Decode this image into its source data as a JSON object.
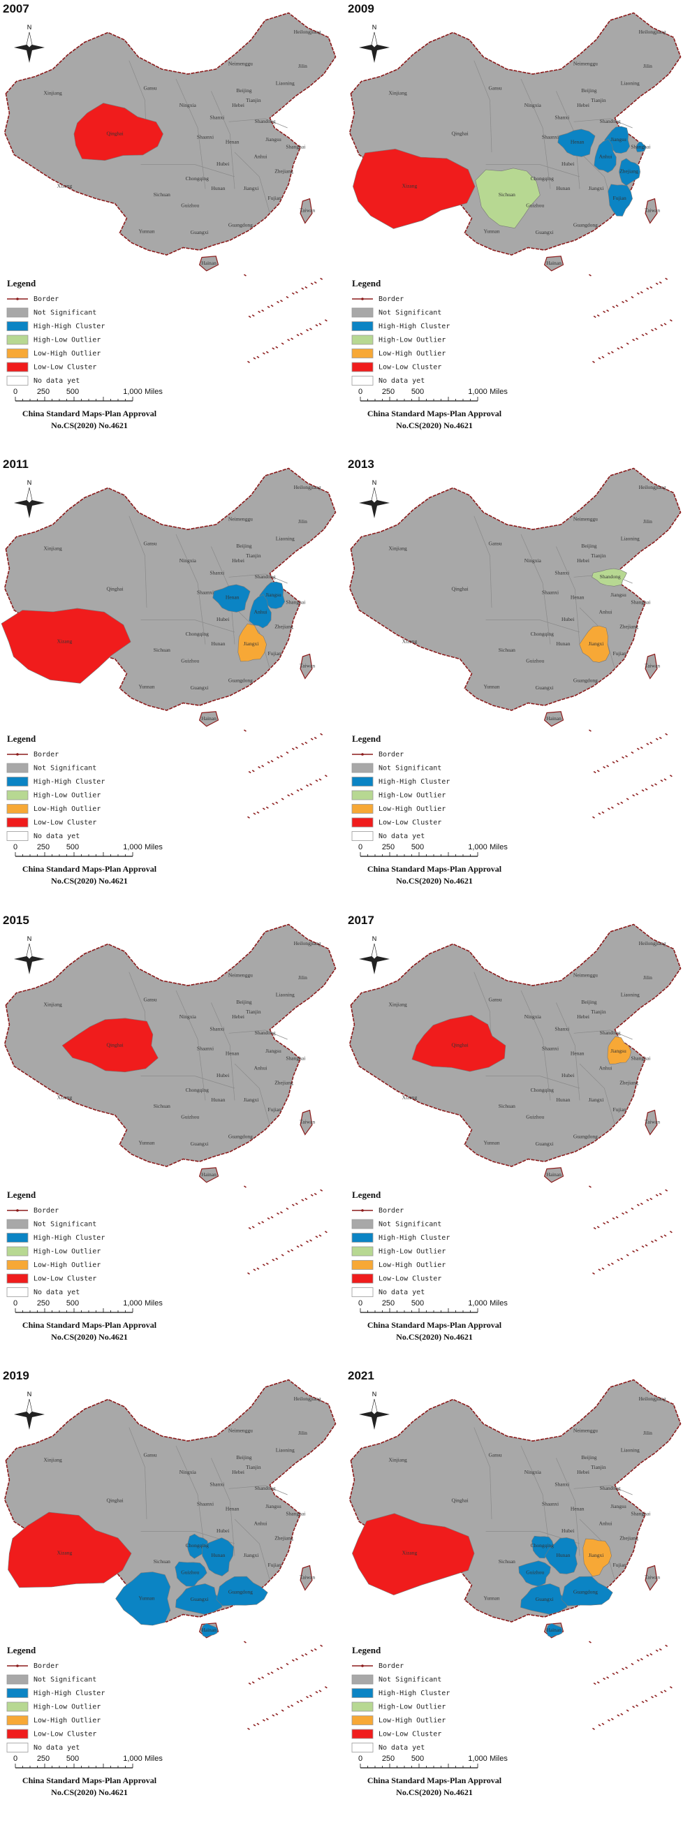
{
  "north": "N",
  "legend_title": "Legend",
  "legend": [
    {
      "label": "Border",
      "color": "#8b1a1a"
    },
    {
      "label": "Not Significant",
      "color": "#a8a8a8"
    },
    {
      "label": "High-High Cluster",
      "color": "#0b84c4"
    },
    {
      "label": "High-Low Outlier",
      "color": "#b7d892"
    },
    {
      "label": "Low-High Outlier",
      "color": "#f7a836"
    },
    {
      "label": "Low-Low Cluster",
      "color": "#f01c1c"
    },
    {
      "label": "No data yet",
      "color": "#ffffff"
    }
  ],
  "scale_bar": {
    "ticks": [
      "0",
      "250",
      "500",
      "1,000"
    ],
    "unit": "Miles"
  },
  "approval": [
    "China Standard Maps-Plan Approval",
    "No.CS(2020) No.4621"
  ],
  "provinces": [
    "Heilongjiang",
    "Jilin",
    "Liaoning",
    "Neimenggu",
    "Beijing",
    "Tianjin",
    "Hebei",
    "Shandong",
    "Shanxi",
    "Ningxia",
    "Gansu",
    "Xinjiang",
    "Qinghai",
    "Xizang",
    "Shaanxi",
    "Henan",
    "Jiangsu",
    "Shanghai",
    "Anhui",
    "Hubei",
    "Chongqing",
    "Sichuan",
    "Zhejiang",
    "Hunan",
    "Jiangxi",
    "Fujian",
    "Guizhou",
    "Yunnan",
    "Guangxi",
    "Guangdong",
    "Taiwan",
    "Hainan"
  ],
  "panels": [
    {
      "year": "2007",
      "regions": {
        "Qinghai": "Low-Low Cluster"
      }
    },
    {
      "year": "2009",
      "regions": {
        "Xizang": "Low-Low Cluster",
        "Sichuan": "High-Low Outlier",
        "Henan": "High-High Cluster",
        "Jiangsu": "High-High Cluster",
        "Anhui": "High-High Cluster",
        "Shanghai": "High-High Cluster",
        "Zhejiang": "High-High Cluster",
        "Fujian": "High-High Cluster"
      }
    },
    {
      "year": "2011",
      "regions": {
        "Xizang": "Low-Low Cluster",
        "Henan": "High-High Cluster",
        "Jiangsu": "High-High Cluster",
        "Anhui": "High-High Cluster",
        "Jiangxi": "Low-High Outlier"
      }
    },
    {
      "year": "2013",
      "regions": {
        "Shandong": "High-Low Outlier",
        "Jiangxi": "Low-High Outlier"
      }
    },
    {
      "year": "2015",
      "regions": {
        "Qinghai": "Low-Low Cluster"
      }
    },
    {
      "year": "2017",
      "regions": {
        "Qinghai": "Low-Low Cluster",
        "Jiangsu": "Low-High Outlier"
      }
    },
    {
      "year": "2019",
      "regions": {
        "Xizang": "Low-Low Cluster",
        "Chongqing": "High-High Cluster",
        "Guizhou": "High-High Cluster",
        "Hunan": "High-High Cluster",
        "Yunnan": "High-High Cluster",
        "Guangxi": "High-High Cluster",
        "Guangdong": "High-High Cluster",
        "Hainan": "High-High Cluster"
      }
    },
    {
      "year": "2021",
      "regions": {
        "Xizang": "Low-Low Cluster",
        "Chongqing": "High-High Cluster",
        "Guizhou": "High-High Cluster",
        "Hunan": "High-High Cluster",
        "Guangxi": "High-High Cluster",
        "Guangdong": "High-High Cluster",
        "Hainan": "High-High Cluster",
        "Jiangxi": "Low-High Outlier"
      }
    }
  ]
}
